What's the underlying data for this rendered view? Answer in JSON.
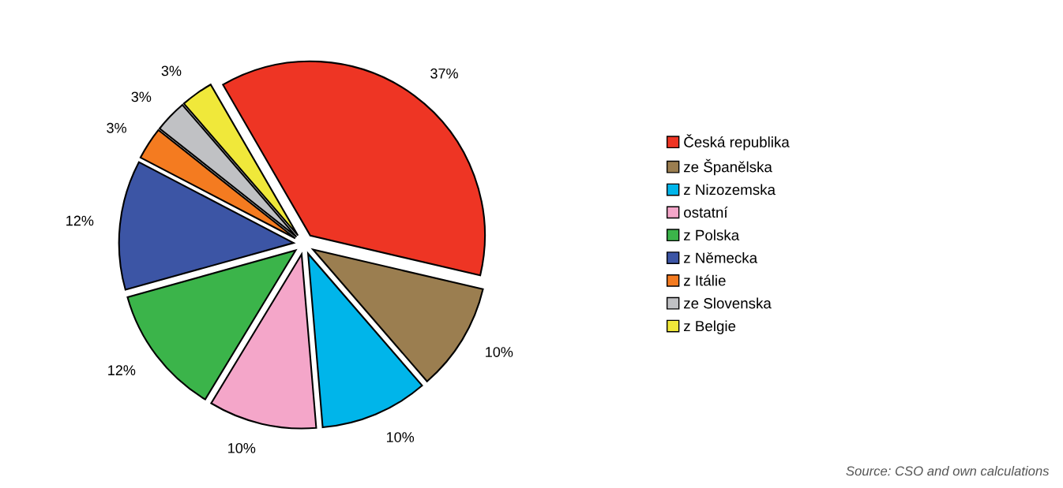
{
  "chart_data": {
    "type": "pie",
    "categories": [
      "Česká republika",
      "ze Španělska",
      "z Nizozemska",
      "ostatní",
      "z Polska",
      "z Německa",
      "z Itálie",
      "ze Slovenska",
      "z Belgie"
    ],
    "values": [
      37,
      10,
      10,
      10,
      12,
      12,
      3,
      3,
      3
    ],
    "value_labels": [
      "37%",
      "10%",
      "10%",
      "10%",
      "12%",
      "12%",
      "3%",
      "3%",
      "3%"
    ],
    "colors": [
      "#ee3524",
      "#9b7e50",
      "#00b5ea",
      "#f4a6c9",
      "#3bb44a",
      "#3c55a5",
      "#f47b20",
      "#c0c1c4",
      "#f0e83a"
    ],
    "legend": "right",
    "annotations": [
      "Source: CSO and own calculations"
    ]
  }
}
